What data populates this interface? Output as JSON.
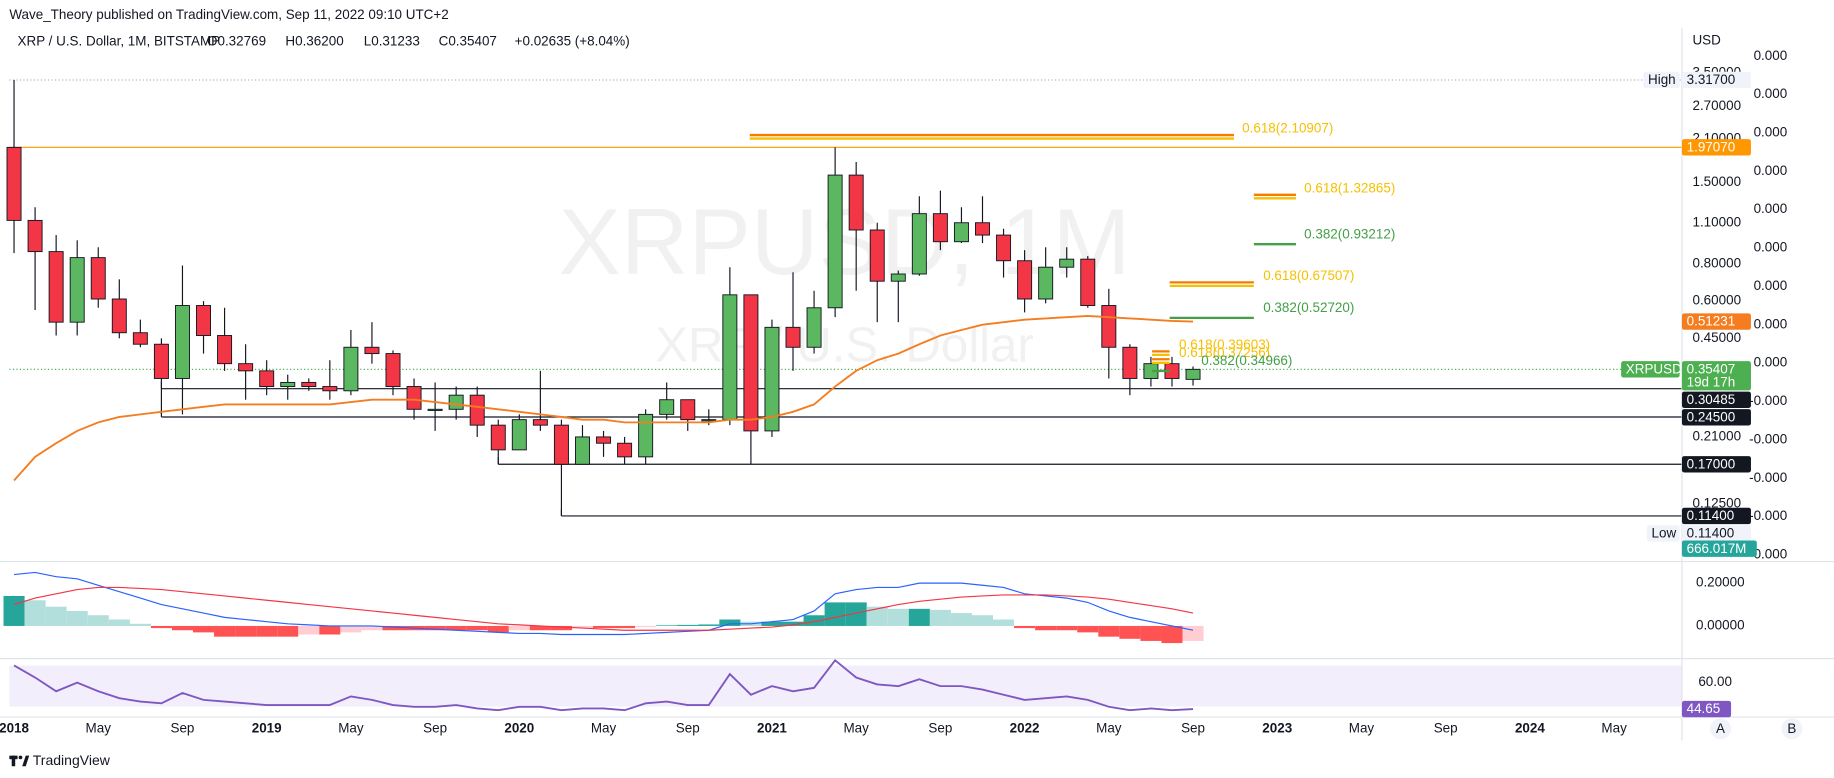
{
  "header": {
    "published": "Wave_Theory published on TradingView.com, Sep 11, 2022 09:10 UTC+2",
    "symbol": "XRP / U.S. Dollar, 1M, BITSTAMP",
    "ohlc": [
      "O0.32769",
      "H0.36200",
      "L0.31233",
      "C0.35407",
      "+0.02635 (+8.04%)"
    ],
    "currency": "USD"
  },
  "watermark": {
    "symbol": "XRPUSD, 1M",
    "description": "XRP / U.S. Dollar"
  },
  "chart_data": [
    {
      "type": "candlestick",
      "x": [
        "2018-01",
        "2018-02",
        "2018-03",
        "2018-04",
        "2018-05",
        "2018-06",
        "2018-07",
        "2018-08",
        "2018-09",
        "2018-10",
        "2018-11",
        "2018-12",
        "2019-01",
        "2019-02",
        "2019-03",
        "2019-04",
        "2019-05",
        "2019-06",
        "2019-07",
        "2019-08",
        "2019-09",
        "2019-10",
        "2019-11",
        "2019-12",
        "2020-01",
        "2020-02",
        "2020-03",
        "2020-04",
        "2020-05",
        "2020-06",
        "2020-07",
        "2020-08",
        "2020-09",
        "2020-10",
        "2020-11",
        "2020-12",
        "2021-01",
        "2021-02",
        "2021-03",
        "2021-04",
        "2021-05",
        "2021-06",
        "2021-07",
        "2021-08",
        "2021-09",
        "2021-10",
        "2021-11",
        "2021-12",
        "2022-01",
        "2022-02",
        "2022-03",
        "2022-04",
        "2022-05",
        "2022-06",
        "2022-07",
        "2022-08",
        "2022-09"
      ],
      "open": [
        1.97,
        1.12,
        0.88,
        0.51,
        0.84,
        0.61,
        0.47,
        0.43,
        0.33,
        0.58,
        0.46,
        0.37,
        0.35,
        0.31,
        0.32,
        0.31,
        0.3,
        0.42,
        0.4,
        0.31,
        0.26,
        0.26,
        0.29,
        0.23,
        0.19,
        0.24,
        0.23,
        0.17,
        0.21,
        0.2,
        0.18,
        0.25,
        0.28,
        0.24,
        0.24,
        0.63,
        0.22,
        0.49,
        0.42,
        0.57,
        1.59,
        1.04,
        0.7,
        0.74,
        1.18,
        0.95,
        1.1,
        1.0,
        0.82,
        0.61,
        0.78,
        0.83,
        0.58,
        0.42,
        0.33,
        0.37,
        0.32769
      ],
      "high": [
        3.317,
        1.24,
        1.0,
        0.96,
        0.91,
        0.71,
        0.52,
        0.45,
        0.79,
        0.6,
        0.57,
        0.43,
        0.38,
        0.34,
        0.33,
        0.38,
        0.48,
        0.51,
        0.41,
        0.33,
        0.32,
        0.31,
        0.31,
        0.24,
        0.25,
        0.35,
        0.24,
        0.23,
        0.22,
        0.21,
        0.26,
        0.32,
        0.28,
        0.26,
        0.78,
        0.63,
        0.52,
        0.75,
        0.65,
        1.97,
        1.76,
        1.1,
        0.76,
        1.35,
        1.41,
        1.24,
        1.35,
        1.05,
        0.89,
        0.91,
        0.91,
        0.85,
        0.66,
        0.43,
        0.39,
        0.39,
        0.362
      ],
      "low": [
        0.87,
        0.56,
        0.46,
        0.46,
        0.57,
        0.45,
        0.42,
        0.25,
        0.25,
        0.4,
        0.35,
        0.28,
        0.29,
        0.28,
        0.3,
        0.28,
        0.29,
        0.37,
        0.29,
        0.24,
        0.22,
        0.24,
        0.21,
        0.17,
        0.19,
        0.22,
        0.114,
        0.17,
        0.18,
        0.17,
        0.17,
        0.24,
        0.22,
        0.23,
        0.23,
        0.17,
        0.21,
        0.35,
        0.4,
        0.53,
        0.65,
        0.51,
        0.51,
        0.73,
        0.89,
        0.94,
        0.94,
        0.72,
        0.55,
        0.59,
        0.72,
        0.57,
        0.33,
        0.29,
        0.31,
        0.31,
        0.31233
      ],
      "close": [
        1.12,
        0.88,
        0.51,
        0.84,
        0.61,
        0.47,
        0.43,
        0.33,
        0.58,
        0.46,
        0.37,
        0.35,
        0.31,
        0.32,
        0.31,
        0.3,
        0.42,
        0.4,
        0.31,
        0.26,
        0.26,
        0.29,
        0.23,
        0.19,
        0.24,
        0.23,
        0.17,
        0.21,
        0.2,
        0.18,
        0.25,
        0.28,
        0.24,
        0.24,
        0.63,
        0.22,
        0.49,
        0.42,
        0.57,
        1.59,
        1.04,
        0.7,
        0.74,
        1.18,
        0.95,
        1.1,
        1.0,
        0.82,
        0.61,
        0.78,
        0.83,
        0.58,
        0.42,
        0.33,
        0.37,
        0.33,
        0.35407
      ],
      "up_color": "#5cb860",
      "down_color": "#f23645",
      "log_scale": true,
      "ylim": [
        0.0816,
        4.69
      ],
      "yticks": [
        {
          "value": 3.5,
          "label": "3.50000"
        },
        {
          "value": 2.7,
          "label": "2.70000"
        },
        {
          "value": 2.1,
          "label": "2.10000"
        },
        {
          "value": 1.5,
          "label": "1.50000"
        },
        {
          "value": 1.1,
          "label": "1.10000"
        },
        {
          "value": 0.8,
          "label": "0.80000"
        },
        {
          "value": 0.6,
          "label": "0.60000"
        },
        {
          "value": 0.45,
          "label": "0.45000"
        },
        {
          "value": 0.21,
          "label": "0.21000"
        },
        {
          "value": 0.125,
          "label": "0.12500"
        }
      ],
      "xlim": [
        "2017-12",
        "2024-08"
      ],
      "xticks": [
        {
          "value": "2018-01",
          "label": "2018"
        },
        {
          "value": "2018-05",
          "label": "May"
        },
        {
          "value": "2018-09",
          "label": "Sep"
        },
        {
          "value": "2019-01",
          "label": "2019"
        },
        {
          "value": "2019-05",
          "label": "May"
        },
        {
          "value": "2019-09",
          "label": "Sep"
        },
        {
          "value": "2020-01",
          "label": "2020"
        },
        {
          "value": "2020-05",
          "label": "May"
        },
        {
          "value": "2020-09",
          "label": "Sep"
        },
        {
          "value": "2021-01",
          "label": "2021"
        },
        {
          "value": "2021-05",
          "label": "May"
        },
        {
          "value": "2021-09",
          "label": "Sep"
        },
        {
          "value": "2022-01",
          "label": "2022"
        },
        {
          "value": "2022-05",
          "label": "May"
        },
        {
          "value": "2022-09",
          "label": "Sep"
        },
        {
          "value": "2023-01",
          "label": "2023"
        },
        {
          "value": "2023-05",
          "label": "May"
        },
        {
          "value": "2023-09",
          "label": "Sep"
        },
        {
          "value": "2024-01",
          "label": "2024"
        },
        {
          "value": "2024-05",
          "label": "May"
        }
      ],
      "ema": {
        "color": "#f57c1f",
        "label": "0.51231",
        "values": [
          0.15,
          0.18,
          0.2,
          0.22,
          0.235,
          0.245,
          0.25,
          0.255,
          0.26,
          0.265,
          0.27,
          0.27,
          0.27,
          0.27,
          0.27,
          0.27,
          0.275,
          0.28,
          0.28,
          0.28,
          0.275,
          0.27,
          0.265,
          0.26,
          0.255,
          0.25,
          0.245,
          0.24,
          0.24,
          0.235,
          0.235,
          0.235,
          0.235,
          0.235,
          0.24,
          0.24,
          0.245,
          0.255,
          0.27,
          0.31,
          0.35,
          0.38,
          0.4,
          0.43,
          0.46,
          0.48,
          0.5,
          0.51,
          0.52,
          0.525,
          0.53,
          0.535,
          0.53,
          0.525,
          0.52,
          0.515,
          0.51231
        ]
      },
      "levels": [
        {
          "value": 1.9707,
          "label": "1.97070",
          "color": "#ff9800"
        },
        {
          "value": 0.30485,
          "label": "0.30485",
          "color": "#131722",
          "from": "2018-08"
        },
        {
          "value": 0.245,
          "label": "0.24500",
          "color": "#131722",
          "from": "2018-08"
        },
        {
          "value": 0.17,
          "label": "0.17000",
          "color": "#131722",
          "from": "2019-12"
        },
        {
          "value": 0.114,
          "label": "0.11400",
          "color": "#131722",
          "from": "2020-03"
        }
      ],
      "fib": [
        {
          "value": 2.10907,
          "label": "0.618(2.10907)",
          "colors": [
            "#f6c000",
            "#f57c00"
          ]
        },
        {
          "value": 1.32865,
          "label": "0.618(1.32865)",
          "colors": [
            "#f6c000",
            "#f57c00"
          ]
        },
        {
          "value": 0.93212,
          "label": "0.382(0.93212)",
          "colors": [
            "#43a047"
          ]
        },
        {
          "value": 0.67507,
          "label": "0.618(0.67507)",
          "colors": [
            "#f6c000",
            "#f57c00"
          ]
        },
        {
          "value": 0.5272,
          "label": "0.382(0.52720)",
          "colors": [
            "#43a047"
          ]
        },
        {
          "value": 0.39603,
          "label": "0.618(0.39603)",
          "colors": [
            "#f6c000",
            "#f57c00"
          ]
        },
        {
          "value": 0.37256,
          "label": "0.618(0.37256)",
          "colors": [
            "#f6c000",
            "#f57c00"
          ]
        },
        {
          "value": 0.34966,
          "label": "0.382(0.34966)",
          "colors": [
            "#43a047"
          ]
        }
      ],
      "high_marker": {
        "name": "High",
        "value": 3.317,
        "label": "3.31700"
      },
      "low_marker": {
        "name": "Low",
        "value": 0.114,
        "label": "0.11400"
      },
      "last_price": {
        "name": "XRPUSD",
        "label": "0.35407",
        "countdown": "19d 17h",
        "color": "#4caf50"
      },
      "volume_label": "666.017M",
      "scale2_labels": [
        "0.000",
        "0.000",
        "0.000",
        "0.000",
        "0.000",
        "0.000",
        "0.000",
        "0.000",
        "0.000",
        "-0.000",
        "-0.000",
        "-0.000",
        "-0.000",
        "-0.000"
      ]
    },
    {
      "type": "macd",
      "ylim": [
        -0.147,
        0.279
      ],
      "yticks": [
        {
          "value": 0.2,
          "label": "0.20000"
        },
        {
          "value": 0,
          "label": "0.00000"
        }
      ],
      "histogram": [
        0.14,
        0.12,
        0.09,
        0.07,
        0.05,
        0.03,
        0.01,
        -0.01,
        -0.02,
        -0.03,
        -0.05,
        -0.05,
        -0.05,
        -0.05,
        -0.04,
        -0.04,
        -0.03,
        -0.02,
        -0.02,
        -0.02,
        -0.02,
        -0.02,
        -0.02,
        -0.03,
        -0.02,
        -0.02,
        -0.02,
        -0.01,
        -0.01,
        -0.01,
        -0.005,
        0.003,
        0.005,
        0.007,
        0.03,
        0.02,
        0.02,
        0.02,
        0.05,
        0.11,
        0.11,
        0.09,
        0.08,
        0.08,
        0.075,
        0.06,
        0.05,
        0.03,
        -0.01,
        -0.02,
        -0.02,
        -0.03,
        -0.05,
        -0.06,
        -0.07,
        -0.08,
        -0.07
      ],
      "histogram_colors": [
        "#26a69a",
        "#b2dfdb",
        "#ff5252",
        "#ffcdd2"
      ],
      "macd": [
        0.24,
        0.25,
        0.23,
        0.22,
        0.19,
        0.16,
        0.13,
        0.1,
        0.08,
        0.06,
        0.04,
        0.03,
        0.02,
        0.01,
        0.005,
        0,
        0,
        0,
        -0.005,
        -0.01,
        -0.015,
        -0.02,
        -0.025,
        -0.03,
        -0.035,
        -0.035,
        -0.04,
        -0.04,
        -0.04,
        -0.04,
        -0.035,
        -0.03,
        -0.025,
        -0.02,
        0.01,
        0.01,
        0.02,
        0.03,
        0.07,
        0.15,
        0.17,
        0.18,
        0.18,
        0.2,
        0.2,
        0.2,
        0.19,
        0.18,
        0.15,
        0.14,
        0.13,
        0.11,
        0.07,
        0.04,
        0.02,
        0.0,
        -0.02
      ],
      "signal": [
        0.1,
        0.13,
        0.15,
        0.17,
        0.18,
        0.18,
        0.175,
        0.17,
        0.16,
        0.15,
        0.14,
        0.13,
        0.12,
        0.11,
        0.1,
        0.09,
        0.08,
        0.07,
        0.06,
        0.05,
        0.04,
        0.03,
        0.02,
        0.01,
        0.005,
        0,
        -0.005,
        -0.01,
        -0.015,
        -0.02,
        -0.02,
        -0.02,
        -0.02,
        -0.02,
        -0.015,
        -0.01,
        -0.005,
        0.005,
        0.02,
        0.04,
        0.06,
        0.08,
        0.1,
        0.115,
        0.125,
        0.135,
        0.14,
        0.145,
        0.145,
        0.145,
        0.14,
        0.135,
        0.125,
        0.11,
        0.095,
        0.08,
        0.06
      ],
      "macd_color": "#2962ff",
      "signal_color": "#f23645"
    },
    {
      "type": "rsi",
      "ylim": [
        40,
        74
      ],
      "yticks": [
        {
          "value": 60,
          "label": "60.00"
        }
      ],
      "values": [
        70,
        63,
        55,
        60,
        55,
        51,
        49,
        48,
        54,
        50,
        49,
        48,
        47,
        47,
        47,
        47,
        52,
        50,
        47,
        46,
        46,
        47,
        45,
        44,
        46,
        46,
        44,
        45,
        45,
        44,
        48,
        49,
        47,
        47,
        65,
        53,
        58,
        55,
        57,
        73,
        63,
        59,
        58,
        62,
        58,
        58,
        56,
        53,
        50,
        51,
        52,
        50,
        46,
        44,
        45,
        44,
        44.65
      ],
      "value_labels": {
        "56": "44.65"
      },
      "color": "#7e57c2"
    }
  ],
  "scale_buttons": [
    "A",
    "B"
  ],
  "footer": {
    "brand": "TradingView"
  }
}
